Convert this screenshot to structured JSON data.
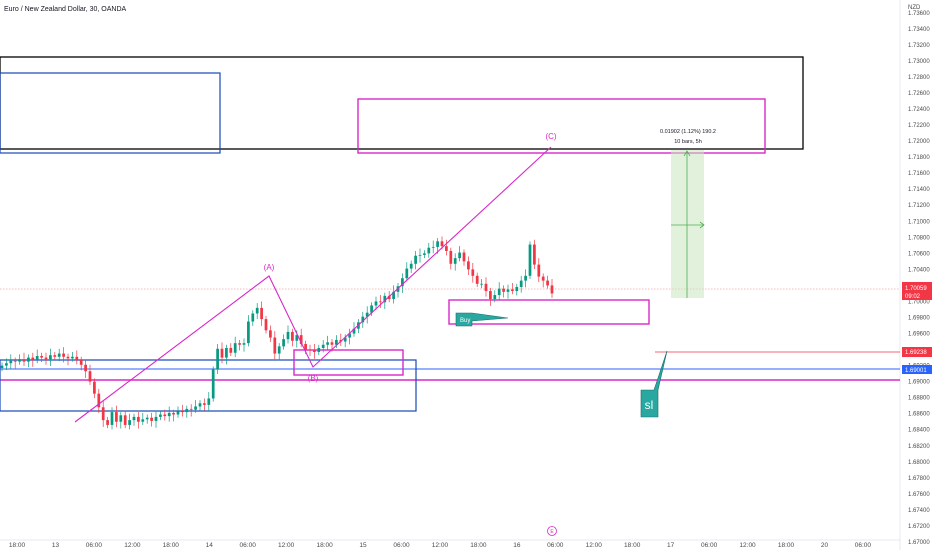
{
  "header": {
    "title": "Euro / New Zealand Dollar, 30, OANDA"
  },
  "chart_data": {
    "type": "candlestick",
    "symbol": "Euro / New Zealand Dollar, 30, OANDA",
    "currency_label": "NZD",
    "y_range": [
      1.669,
      1.7376
    ],
    "y_ticks": [
      "1.73600",
      "1.73400",
      "1.73200",
      "1.73000",
      "1.72800",
      "1.72600",
      "1.72400",
      "1.72200",
      "1.72000",
      "1.71800",
      "1.71600",
      "1.71400",
      "1.71200",
      "1.71000",
      "1.70800",
      "1.70600",
      "1.70400",
      "1.70200",
      "1.70000",
      "1.69800",
      "1.69600",
      "1.69400",
      "1.69200",
      "1.69000",
      "1.68800",
      "1.68600",
      "1.68400",
      "1.68200",
      "1.68000",
      "1.67800",
      "1.67600",
      "1.67400",
      "1.67200",
      "1.67000"
    ],
    "x_tick_labels": [
      "18:00",
      "13",
      "06:00",
      "12:00",
      "18:00",
      "14",
      "06:00",
      "12:00",
      "18:00",
      "15",
      "06:00",
      "12:00",
      "18:00",
      "16",
      "06:00",
      "12:00",
      "18:00",
      "17",
      "06:00",
      "12:00",
      "18:00",
      "20",
      "06:00"
    ],
    "closes": [
      1.692,
      1.6923,
      1.6926,
      1.6925,
      1.6928,
      1.6925,
      1.693,
      1.6927,
      1.6932,
      1.693,
      1.6928,
      1.6933,
      1.6931,
      1.6935,
      1.6931,
      1.6929,
      1.6931,
      1.6927,
      1.6921,
      1.6913,
      1.69,
      1.6885,
      1.6868,
      1.6852,
      1.6846,
      1.6862,
      1.685,
      1.6858,
      1.6846,
      1.6852,
      1.6856,
      1.685,
      1.6853,
      1.6855,
      1.6851,
      1.6856,
      1.6859,
      1.6857,
      1.6861,
      1.6859,
      1.6863,
      1.6862,
      1.6866,
      1.6865,
      1.6869,
      1.6873,
      1.6871,
      1.6879,
      1.6915,
      1.6941,
      1.693,
      1.6942,
      1.6936,
      1.6948,
      1.6946,
      1.6948,
      1.6975,
      1.6985,
      1.6992,
      1.6978,
      1.6964,
      1.6955,
      1.6935,
      1.6944,
      1.6953,
      1.6962,
      1.6951,
      1.6958,
      1.6947,
      1.694,
      1.6939,
      1.6937,
      1.6942,
      1.6946,
      1.6949,
      1.6946,
      1.6952,
      1.695,
      1.6955,
      1.696,
      1.6966,
      1.6974,
      1.6981,
      1.6986,
      1.6995,
      1.7,
      1.6999,
      1.7007,
      1.7003,
      1.7012,
      1.7019,
      1.7029,
      1.7041,
      1.7047,
      1.7057,
      1.7058,
      1.706,
      1.7067,
      1.7068,
      1.7075,
      1.7069,
      1.7063,
      1.7047,
      1.7054,
      1.7061,
      1.705,
      1.704,
      1.7032,
      1.7022,
      1.7022,
      1.7013,
      1.7003,
      1.7008,
      1.7016,
      1.7012,
      1.7015,
      1.7013,
      1.7018,
      1.7026,
      1.7032,
      1.7071,
      1.7046,
      1.7031,
      1.7026,
      1.702,
      1.701
    ],
    "last_price": {
      "label": "1.70059",
      "sub": "09:02",
      "color": "#f23645"
    },
    "price_tags": [
      {
        "value": "1.69238",
        "color": "#f23645"
      },
      {
        "value": "1.69001",
        "color": "#2962ff"
      }
    ],
    "annotations": {
      "wave_labels": [
        "(A)",
        "(B)",
        "(C)"
      ],
      "measure_line1": "0.01902 (1.12%) 190.2",
      "measure_line2": "10 bars, 5h",
      "buy_label": "Buy",
      "sl_label": "sl",
      "event_marker": "E"
    },
    "colors": {
      "up": "#089981",
      "down": "#f23645",
      "magenta": "#d928c9",
      "blue": "#1848b8",
      "black": "#000000",
      "teal": "#28a8a0"
    },
    "grid": false
  }
}
